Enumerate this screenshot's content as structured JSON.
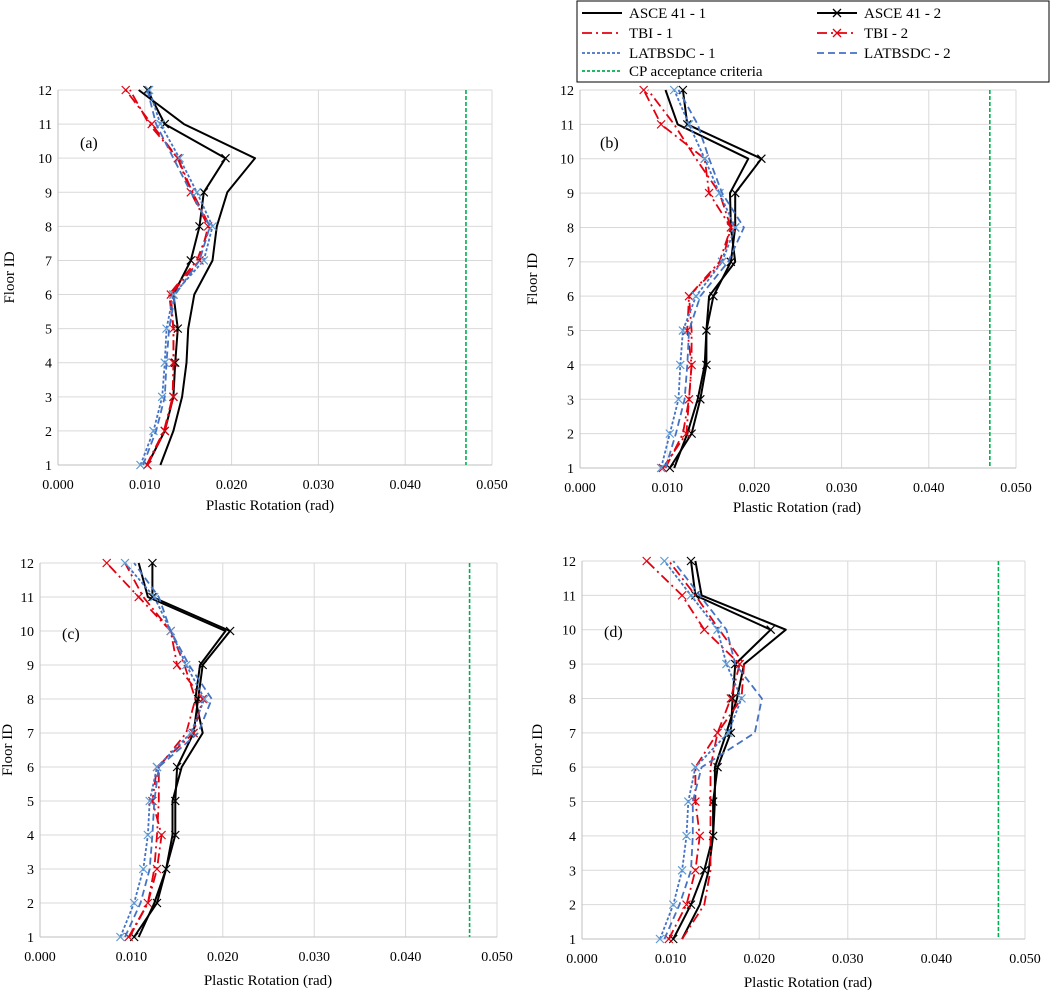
{
  "figure": {
    "legend": [
      {
        "label": "ASCE 41 - 1",
        "color": "#000000",
        "dash": "solid",
        "marker": "none"
      },
      {
        "label": "ASCE 41 - 2",
        "color": "#000000",
        "dash": "solid",
        "marker": "x"
      },
      {
        "label": "TBI - 1",
        "color": "#e3000f",
        "dash": "dashdot",
        "marker": "none"
      },
      {
        "label": "TBI - 2",
        "color": "#e3000f",
        "dash": "dashdot",
        "marker": "x"
      },
      {
        "label": "LATBSDC - 1",
        "color": "#4472c4",
        "dash": "dotted",
        "marker": "none"
      },
      {
        "label": "LATBSDC - 2",
        "color": "#4472c4",
        "dash": "dashed",
        "marker": "none"
      },
      {
        "label": "CP acceptance criteria",
        "color": "#00b050",
        "dash": "dotted",
        "marker": "none"
      }
    ]
  },
  "chart_data": [
    {
      "type": "line",
      "panel": "(a)",
      "xlabel": "Plastic Rotation (rad)",
      "ylabel": "Floor ID",
      "xlim": [
        0,
        0.05
      ],
      "ylim": [
        1,
        12
      ],
      "xticks": [
        "0.000",
        "0.010",
        "0.020",
        "0.030",
        "0.040",
        "0.050"
      ],
      "yticks": [
        "1",
        "2",
        "3",
        "4",
        "5",
        "6",
        "7",
        "8",
        "9",
        "10",
        "11",
        "12"
      ],
      "floors": [
        1,
        2,
        3,
        4,
        5,
        6,
        7,
        8,
        9,
        10,
        11,
        12
      ],
      "cp_criteria": 0.047,
      "series": [
        {
          "name": "ASCE 41 - 1",
          "values": [
            0.0118,
            0.0133,
            0.0143,
            0.0148,
            0.015,
            0.0157,
            0.0178,
            0.0183,
            0.0195,
            0.0227,
            0.0145,
            0.0093
          ]
        },
        {
          "name": "ASCE 41 - 2",
          "values": [
            0.0103,
            0.0123,
            0.0133,
            0.0135,
            0.0138,
            0.0133,
            0.0153,
            0.0163,
            0.0168,
            0.0193,
            0.0123,
            0.0103
          ]
        },
        {
          "name": "TBI - 1",
          "values": [
            0.0102,
            0.0122,
            0.0132,
            0.0133,
            0.0133,
            0.0128,
            0.016,
            0.0175,
            0.0155,
            0.0138,
            0.0105,
            0.0083
          ]
        },
        {
          "name": "TBI - 2",
          "values": [
            0.0103,
            0.0123,
            0.0133,
            0.0133,
            0.0133,
            0.013,
            0.0163,
            0.0173,
            0.0153,
            0.0138,
            0.0108,
            0.0078
          ]
        },
        {
          "name": "LATBSDC - 1",
          "values": [
            0.0095,
            0.011,
            0.012,
            0.0123,
            0.0125,
            0.0133,
            0.0168,
            0.0178,
            0.016,
            0.014,
            0.0118,
            0.0105
          ]
        },
        {
          "name": "LATBSDC - 2",
          "values": [
            0.0098,
            0.0113,
            0.0123,
            0.0125,
            0.0128,
            0.0135,
            0.0163,
            0.0175,
            0.0153,
            0.0133,
            0.0113,
            0.0103
          ]
        }
      ]
    },
    {
      "type": "line",
      "panel": "(b)",
      "xlabel": "Plastic Rotation (rad)",
      "ylabel": "Floor ID",
      "xlim": [
        0,
        0.05
      ],
      "ylim": [
        1,
        12
      ],
      "xticks": [
        "0.000",
        "0.010",
        "0.020",
        "0.030",
        "0.040",
        "0.050"
      ],
      "yticks": [
        "1",
        "2",
        "3",
        "4",
        "5",
        "6",
        "7",
        "8",
        "9",
        "10",
        "11",
        "12"
      ],
      "floors": [
        1,
        2,
        3,
        4,
        5,
        6,
        7,
        8,
        9,
        10,
        11,
        12
      ],
      "cp_criteria": 0.047,
      "series": [
        {
          "name": "ASCE 41 - 1",
          "values": [
            0.0108,
            0.0123,
            0.0135,
            0.0143,
            0.0145,
            0.0148,
            0.0178,
            0.0173,
            0.0172,
            0.0193,
            0.0112,
            0.0098
          ]
        },
        {
          "name": "ASCE 41 - 2",
          "values": [
            0.0103,
            0.0128,
            0.0138,
            0.0145,
            0.0145,
            0.0153,
            0.0173,
            0.0178,
            0.0178,
            0.0208,
            0.0123,
            0.0118
          ]
        },
        {
          "name": "TBI - 1",
          "values": [
            0.0098,
            0.0118,
            0.0125,
            0.0128,
            0.0128,
            0.0125,
            0.016,
            0.0173,
            0.016,
            0.0133,
            0.0108,
            0.0078
          ]
        },
        {
          "name": "TBI - 2",
          "values": [
            0.0095,
            0.0122,
            0.0125,
            0.0128,
            0.0123,
            0.0125,
            0.0163,
            0.0173,
            0.0148,
            0.0143,
            0.0093,
            0.0073
          ]
        },
        {
          "name": "LATBSDC - 1",
          "values": [
            0.0093,
            0.0103,
            0.0113,
            0.0115,
            0.0118,
            0.0133,
            0.0163,
            0.0178,
            0.016,
            0.0143,
            0.0125,
            0.0108
          ]
        },
        {
          "name": "LATBSDC - 2",
          "values": [
            0.0098,
            0.011,
            0.012,
            0.0123,
            0.0125,
            0.0138,
            0.017,
            0.0188,
            0.0163,
            0.0148,
            0.0135,
            0.0113
          ]
        }
      ]
    },
    {
      "type": "line",
      "panel": "(c)",
      "xlabel": "Plastic Rotation (rad)",
      "ylabel": "Floor ID",
      "xlim": [
        0,
        0.05
      ],
      "ylim": [
        1,
        12
      ],
      "xticks": [
        "0.000",
        "0.010",
        "0.020",
        "0.030",
        "0.040",
        "0.050"
      ],
      "yticks": [
        "1",
        "2",
        "3",
        "4",
        "5",
        "6",
        "7",
        "8",
        "9",
        "10",
        "11",
        "12"
      ],
      "floors": [
        1,
        2,
        3,
        4,
        5,
        6,
        7,
        8,
        9,
        10,
        11,
        12
      ],
      "cp_criteria": 0.047,
      "series": [
        {
          "name": "ASCE 41 - 1",
          "values": [
            0.0108,
            0.0125,
            0.0138,
            0.0145,
            0.0145,
            0.0155,
            0.0178,
            0.017,
            0.0175,
            0.0203,
            0.0118,
            0.0108
          ]
        },
        {
          "name": "ASCE 41 - 2",
          "values": [
            0.0103,
            0.0128,
            0.0138,
            0.0148,
            0.0148,
            0.015,
            0.0168,
            0.0173,
            0.0178,
            0.0208,
            0.0123,
            0.0123
          ]
        },
        {
          "name": "TBI - 1",
          "values": [
            0.0098,
            0.0118,
            0.0125,
            0.0128,
            0.013,
            0.013,
            0.016,
            0.017,
            0.0158,
            0.0143,
            0.0113,
            0.0093
          ]
        },
        {
          "name": "TBI - 2",
          "values": [
            0.0097,
            0.0118,
            0.0128,
            0.0133,
            0.0123,
            0.0128,
            0.0168,
            0.0178,
            0.015,
            0.0143,
            0.0108,
            0.0073
          ]
        },
        {
          "name": "LATBSDC - 1",
          "values": [
            0.0088,
            0.0103,
            0.0113,
            0.0118,
            0.012,
            0.0128,
            0.0165,
            0.018,
            0.016,
            0.0143,
            0.0125,
            0.0093
          ]
        },
        {
          "name": "LATBSDC - 2",
          "values": [
            0.0093,
            0.011,
            0.012,
            0.0123,
            0.0125,
            0.013,
            0.0173,
            0.0188,
            0.0163,
            0.0143,
            0.013,
            0.0103
          ]
        }
      ]
    },
    {
      "type": "line",
      "panel": "(d)",
      "xlabel": "Plastic Rotation (rad)",
      "ylabel": "Floor ID",
      "xlim": [
        0,
        0.05
      ],
      "ylim": [
        1,
        12
      ],
      "xticks": [
        "0.000",
        "0.010",
        "0.020",
        "0.030",
        "0.040",
        "0.050"
      ],
      "yticks": [
        "1",
        "2",
        "3",
        "4",
        "5",
        "6",
        "7",
        "8",
        "9",
        "10",
        "11",
        "12"
      ],
      "floors": [
        1,
        2,
        3,
        4,
        5,
        6,
        7,
        8,
        9,
        10,
        11,
        12
      ],
      "cp_criteria": 0.047,
      "series": [
        {
          "name": "ASCE 41 - 1",
          "values": [
            0.0113,
            0.0133,
            0.0143,
            0.0148,
            0.015,
            0.015,
            0.0163,
            0.0175,
            0.0183,
            0.023,
            0.0135,
            0.0128
          ]
        },
        {
          "name": "ASCE 41 - 2",
          "values": [
            0.0103,
            0.0123,
            0.0138,
            0.0148,
            0.0148,
            0.0153,
            0.0168,
            0.017,
            0.0173,
            0.0213,
            0.0128,
            0.0123
          ]
        },
        {
          "name": "TBI - 1",
          "values": [
            0.0113,
            0.0138,
            0.0145,
            0.0145,
            0.0145,
            0.0145,
            0.0153,
            0.018,
            0.0183,
            0.0155,
            0.0128,
            0.0098
          ]
        },
        {
          "name": "TBI - 2",
          "values": [
            0.0098,
            0.0118,
            0.0128,
            0.0133,
            0.0128,
            0.0128,
            0.0153,
            0.0168,
            0.0178,
            0.0138,
            0.0113,
            0.0073
          ]
        },
        {
          "name": "LATBSDC - 1",
          "values": [
            0.0088,
            0.0103,
            0.0113,
            0.0118,
            0.012,
            0.0128,
            0.0165,
            0.018,
            0.0163,
            0.0153,
            0.0123,
            0.0093
          ]
        },
        {
          "name": "LATBSDC - 2",
          "values": [
            0.0093,
            0.011,
            0.0123,
            0.0125,
            0.0125,
            0.0135,
            0.0195,
            0.0203,
            0.0173,
            0.0163,
            0.0133,
            0.0103
          ]
        }
      ]
    }
  ]
}
